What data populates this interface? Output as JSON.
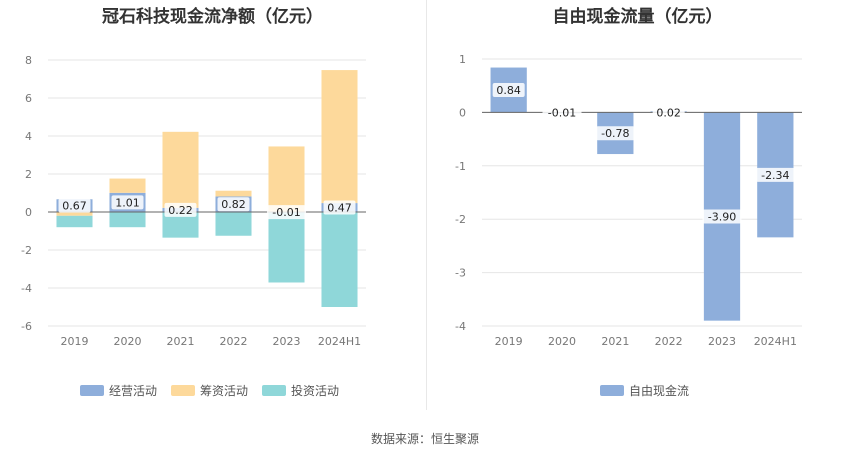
{
  "source_text": "数据来源：恒生聚源",
  "chart_data": [
    {
      "type": "bar",
      "stacked": true,
      "title": "冠石科技现金流净额（亿元）",
      "categories": [
        "2019",
        "2020",
        "2021",
        "2022",
        "2023",
        "2024H1"
      ],
      "ylim": [
        -6,
        8
      ],
      "yticks": [
        -6,
        -4,
        -2,
        0,
        2,
        4,
        6,
        8
      ],
      "grid": true,
      "legend_position": "bottom",
      "series": [
        {
          "name": "经营活动",
          "color": "#8eaedb",
          "values": [
            0.67,
            1.01,
            0.22,
            0.82,
            -0.01,
            0.47
          ],
          "labels": [
            "0.67",
            "1.01",
            "0.22",
            "0.82",
            "-0.01",
            "0.47"
          ]
        },
        {
          "name": "筹资活动",
          "color": "#fdd99b",
          "values": [
            -0.2,
            0.75,
            4.0,
            0.3,
            3.45,
            7.0
          ]
        },
        {
          "name": "投资活动",
          "color": "#8fd7d9",
          "values": [
            -0.6,
            -0.8,
            -1.35,
            -1.25,
            -3.7,
            -5.0
          ]
        }
      ]
    },
    {
      "type": "bar",
      "title": "自由现金流量（亿元）",
      "categories": [
        "2019",
        "2020",
        "2021",
        "2022",
        "2023",
        "2024H1"
      ],
      "ylim": [
        -4,
        1
      ],
      "yticks": [
        -4,
        -3,
        -2,
        -1,
        0,
        1
      ],
      "grid": true,
      "legend_position": "bottom",
      "series": [
        {
          "name": "自由现金流",
          "color": "#8eaedb",
          "values": [
            0.84,
            -0.01,
            -0.78,
            0.02,
            -3.9,
            -2.34
          ],
          "labels": [
            "0.84",
            "-0.01",
            "-0.78",
            "0.02",
            "-3.90",
            "-2.34"
          ]
        }
      ]
    }
  ]
}
